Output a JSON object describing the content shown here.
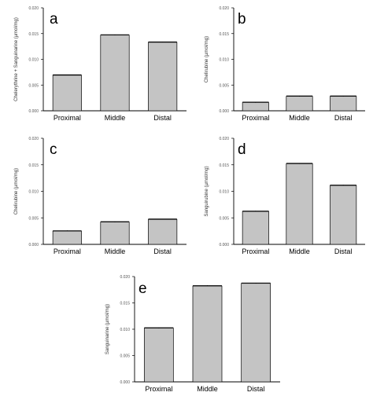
{
  "chart_data": [
    {
      "panel": "a",
      "type": "bar",
      "categories": [
        "Proximal",
        "Middle",
        "Distal"
      ],
      "values": [
        0.0069,
        0.0147,
        0.0133
      ],
      "errors": [
        0.0001,
        0.0001,
        0.0001
      ],
      "ylabel": "Chelerythrine + Sanguinarine (µmol/mg)",
      "yticks": [
        "0.000",
        "0.005",
        "0.010",
        "0.015",
        "0.020"
      ],
      "ylim": [
        0,
        0.02
      ],
      "bar_color": "#c4c4c4"
    },
    {
      "panel": "b",
      "type": "bar",
      "categories": [
        "Proximal",
        "Middle",
        "Distal"
      ],
      "values": [
        0.0016,
        0.0028,
        0.0028
      ],
      "errors": [
        0.0001,
        0.0001,
        0.0001
      ],
      "ylabel": "Chelirubine (µmol/mg)",
      "yticks": [
        "0.000",
        "0.005",
        "0.010",
        "0.015",
        "0.020"
      ],
      "ylim": [
        0,
        0.02
      ],
      "bar_color": "#c4c4c4"
    },
    {
      "panel": "c",
      "type": "bar",
      "categories": [
        "Proximal",
        "Middle",
        "Distal"
      ],
      "values": [
        0.0025,
        0.0042,
        0.0047
      ],
      "errors": [
        0.0001,
        0.0001,
        0.0001
      ],
      "ylabel": "Chelirubine (µmol/mg)",
      "yticks": [
        "0.000",
        "0.005",
        "0.010",
        "0.015",
        "0.020"
      ],
      "ylim": [
        0,
        0.02
      ],
      "bar_color": "#c4c4c4"
    },
    {
      "panel": "d",
      "type": "bar",
      "categories": [
        "Proximal",
        "Middle",
        "Distal"
      ],
      "values": [
        0.0062,
        0.0152,
        0.0111
      ],
      "errors": [
        0.0001,
        0.0001,
        0.0001
      ],
      "ylabel": "Sanguirubine (µmol/mg)",
      "yticks": [
        "0.000",
        "0.005",
        "0.010",
        "0.015",
        "0.020"
      ],
      "ylim": [
        0,
        0.02
      ],
      "bar_color": "#c4c4c4"
    },
    {
      "panel": "e",
      "type": "bar",
      "categories": [
        "Proximal",
        "Middle",
        "Distal"
      ],
      "values": [
        0.0102,
        0.0182,
        0.0187
      ],
      "errors": [
        0.0001,
        0.0001,
        0.0001
      ],
      "ylabel": "Sanguinarine (µmol/mg)",
      "yticks": [
        "0.000",
        "0.005",
        "0.010",
        "0.015",
        "0.020"
      ],
      "ylim": [
        0,
        0.02
      ],
      "bar_color": "#c4c4c4"
    }
  ]
}
